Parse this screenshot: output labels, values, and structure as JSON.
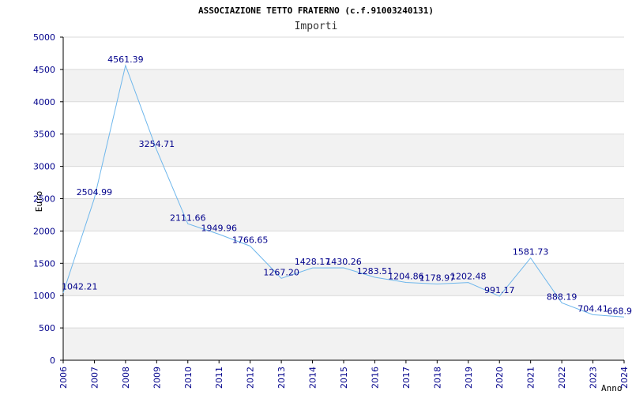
{
  "chart_data": {
    "type": "line",
    "title": "ASSOCIAZIONE TETTO FRATERNO (c.f.91003240131)",
    "subtitle": "Importi",
    "xlabel": "Anno",
    "ylabel": "Euro",
    "x": [
      "2006",
      "2007",
      "2008",
      "2009",
      "2010",
      "2011",
      "2012",
      "2013",
      "2014",
      "2015",
      "2016",
      "2017",
      "2018",
      "2019",
      "2020",
      "2021",
      "2022",
      "2023",
      "2024"
    ],
    "y": [
      1042.21,
      2504.99,
      4561.39,
      3254.71,
      2111.66,
      1949.96,
      1766.65,
      1267.2,
      1428.17,
      1430.26,
      1283.51,
      1204.86,
      1178.97,
      1202.48,
      991.17,
      1581.73,
      888.19,
      704.41,
      668.9
    ],
    "data_labels": [
      "1042.21",
      "2504.99",
      "4561.39",
      "3254.71",
      "2111.66",
      "1949.96",
      "1766.65",
      "1267.20",
      "1428.17",
      "1430.26",
      "1283.51",
      "1204.86",
      "1178.97",
      "1202.48",
      "991.17",
      "1581.73",
      "888.19",
      "704.41",
      "668.9"
    ],
    "yticks": [
      "0",
      "500",
      "1000",
      "1500",
      "2000",
      "2500",
      "3000",
      "3500",
      "4000",
      "4500",
      "5000"
    ],
    "ylim": [
      0,
      5000
    ],
    "grid": true,
    "colors": {
      "line": "#6fb7ec",
      "band": "#f2f2f2",
      "grid": "#d9d9d9",
      "axis": "#000000",
      "tick_text": "#00008b",
      "label_text": "#00008b"
    }
  }
}
